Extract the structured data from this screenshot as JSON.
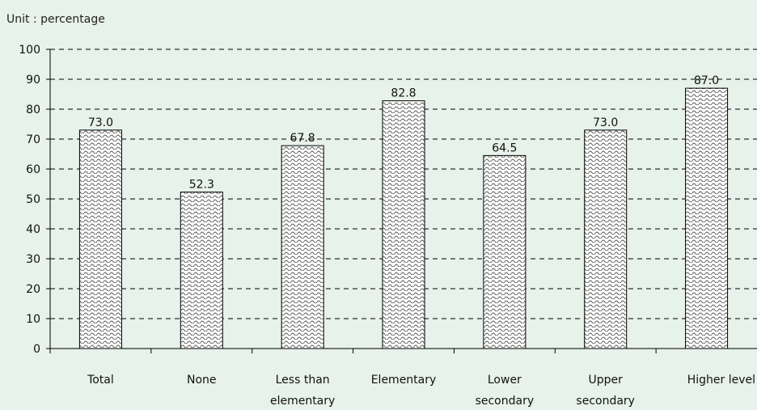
{
  "chart_data": {
    "type": "bar",
    "unit_label": "Unit : percentage",
    "categories": [
      [
        "Total"
      ],
      [
        "None"
      ],
      [
        "Less than",
        "elementary"
      ],
      [
        "Elementary"
      ],
      [
        "Lower",
        "secondary"
      ],
      [
        "Upper",
        "secondary"
      ],
      [
        "Higher level"
      ]
    ],
    "values": [
      73.0,
      52.3,
      67.8,
      82.8,
      64.5,
      73.0,
      87.0
    ],
    "data_labels": [
      "73.0",
      "52.3",
      "67.8",
      "82.8",
      "64.5",
      "73.0",
      "87.0"
    ],
    "ylim": [
      0,
      100
    ],
    "yticks": [
      0,
      10,
      20,
      30,
      40,
      50,
      60,
      70,
      80,
      90,
      100
    ],
    "grid": true,
    "colors": {
      "background": "#e6f2ea",
      "bar_pattern": "#555555",
      "bar_fill": "#ffffff",
      "axis": "#000000"
    }
  }
}
